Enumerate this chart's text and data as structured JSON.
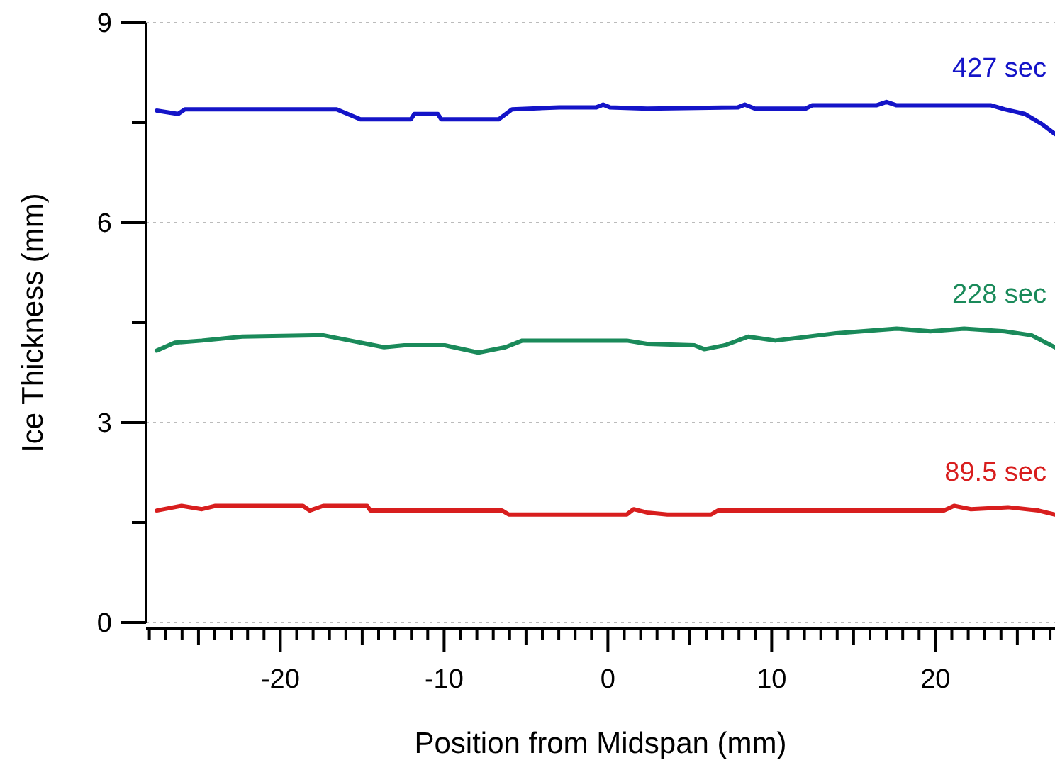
{
  "chart_data": {
    "type": "line",
    "xlabel": "Position from Midspan (mm)",
    "ylabel": "Ice Thickness (mm)",
    "xlim": [
      -28.2,
      27.3
    ],
    "ylim": [
      0,
      9
    ],
    "xticks": [
      {
        "value": -28,
        "label": null
      },
      {
        "value": -27,
        "label": null
      },
      {
        "value": -26,
        "label": null
      },
      {
        "value": -25,
        "label": null
      },
      {
        "value": -24,
        "label": null
      },
      {
        "value": -23,
        "label": null
      },
      {
        "value": -22,
        "label": null
      },
      {
        "value": -21,
        "label": null
      },
      -20,
      {
        "value": -19,
        "label": null
      },
      {
        "value": -18,
        "label": null
      },
      {
        "value": -17,
        "label": null
      },
      {
        "value": -16,
        "label": null
      },
      {
        "value": -15,
        "label": null
      },
      {
        "value": -14,
        "label": null
      },
      {
        "value": -13,
        "label": null
      },
      {
        "value": -12,
        "label": null
      },
      {
        "value": -11,
        "label": null
      },
      -10,
      {
        "value": -9,
        "label": null
      },
      {
        "value": -8,
        "label": null
      },
      {
        "value": -7,
        "label": null
      },
      {
        "value": -6,
        "label": null
      },
      {
        "value": -5,
        "label": null
      },
      {
        "value": -4,
        "label": null
      },
      {
        "value": -3,
        "label": null
      },
      {
        "value": -2,
        "label": null
      },
      {
        "value": -1,
        "label": null
      },
      0,
      {
        "value": 1,
        "label": null
      },
      {
        "value": 2,
        "label": null
      },
      {
        "value": 3,
        "label": null
      },
      {
        "value": 4,
        "label": null
      },
      {
        "value": 5,
        "label": null
      },
      {
        "value": 6,
        "label": null
      },
      {
        "value": 7,
        "label": null
      },
      {
        "value": 8,
        "label": null
      },
      {
        "value": 9,
        "label": null
      },
      10,
      {
        "value": 11,
        "label": null
      },
      {
        "value": 12,
        "label": null
      },
      {
        "value": 13,
        "label": null
      },
      {
        "value": 14,
        "label": null
      },
      {
        "value": 15,
        "label": null
      },
      {
        "value": 16,
        "label": null
      },
      {
        "value": 17,
        "label": null
      },
      {
        "value": 18,
        "label": null
      },
      {
        "value": 19,
        "label": null
      },
      20,
      {
        "value": 21,
        "label": null
      },
      {
        "value": 22,
        "label": null
      },
      {
        "value": 23,
        "label": null
      },
      {
        "value": 24,
        "label": null
      },
      {
        "value": 25,
        "label": null
      },
      {
        "value": 26,
        "label": null
      },
      {
        "value": 27,
        "label": null
      }
    ],
    "yticks": [
      0,
      {
        "value": 1.5,
        "label": null
      },
      3,
      {
        "value": 4.5,
        "label": null
      },
      6,
      {
        "value": 7.5,
        "label": null
      },
      9
    ],
    "grid": "y",
    "marker": "none",
    "line_style": "solid",
    "series": [
      {
        "name": "427 sec",
        "color": "#1414c8",
        "x": [
          -27.55,
          -26.24,
          -25.83,
          -16.56,
          -15.11,
          -12.03,
          -11.82,
          -10.38,
          -10.17,
          -6.67,
          -5.85,
          -2.97,
          -0.7,
          -0.29,
          0.12,
          2.39,
          7.95,
          8.36,
          8.98,
          12.07,
          12.48,
          16.39,
          17.01,
          17.63,
          23.4,
          24.22,
          25.46,
          26.49,
          27.3
        ],
        "values": [
          7.68,
          7.63,
          7.7,
          7.7,
          7.55,
          7.55,
          7.63,
          7.63,
          7.55,
          7.55,
          7.7,
          7.73,
          7.73,
          7.77,
          7.73,
          7.71,
          7.73,
          7.77,
          7.71,
          7.71,
          7.76,
          7.76,
          7.81,
          7.76,
          7.76,
          7.7,
          7.63,
          7.48,
          7.33
        ]
      },
      {
        "name": "228 sec",
        "color": "#1a8a5a",
        "x": [
          -27.55,
          -26.44,
          -24.79,
          -22.33,
          -17.38,
          -15.73,
          -13.67,
          -12.43,
          -9.96,
          -7.91,
          -6.26,
          -5.23,
          1.16,
          2.39,
          5.28,
          5.9,
          7.14,
          8.57,
          10.22,
          13.93,
          17.63,
          19.69,
          21.75,
          24.22,
          25.87,
          27.3
        ],
        "values": [
          4.08,
          4.2,
          4.23,
          4.29,
          4.31,
          4.23,
          4.13,
          4.16,
          4.16,
          4.05,
          4.13,
          4.23,
          4.23,
          4.18,
          4.16,
          4.1,
          4.16,
          4.29,
          4.23,
          4.34,
          4.41,
          4.37,
          4.41,
          4.37,
          4.31,
          4.13
        ]
      },
      {
        "name": "89.5 sec",
        "color": "#d81e1e",
        "x": [
          -27.55,
          -26.03,
          -24.79,
          -23.97,
          -18.62,
          -18.21,
          -17.38,
          -14.7,
          -14.5,
          -6.46,
          -6.05,
          1.16,
          1.57,
          2.39,
          3.63,
          6.3,
          6.72,
          20.52,
          21.14,
          22.17,
          24.43,
          26.28,
          27.3
        ],
        "values": [
          1.68,
          1.75,
          1.7,
          1.75,
          1.75,
          1.68,
          1.75,
          1.75,
          1.68,
          1.68,
          1.62,
          1.62,
          1.7,
          1.65,
          1.62,
          1.62,
          1.68,
          1.68,
          1.75,
          1.7,
          1.73,
          1.68,
          1.62
        ]
      }
    ]
  }
}
